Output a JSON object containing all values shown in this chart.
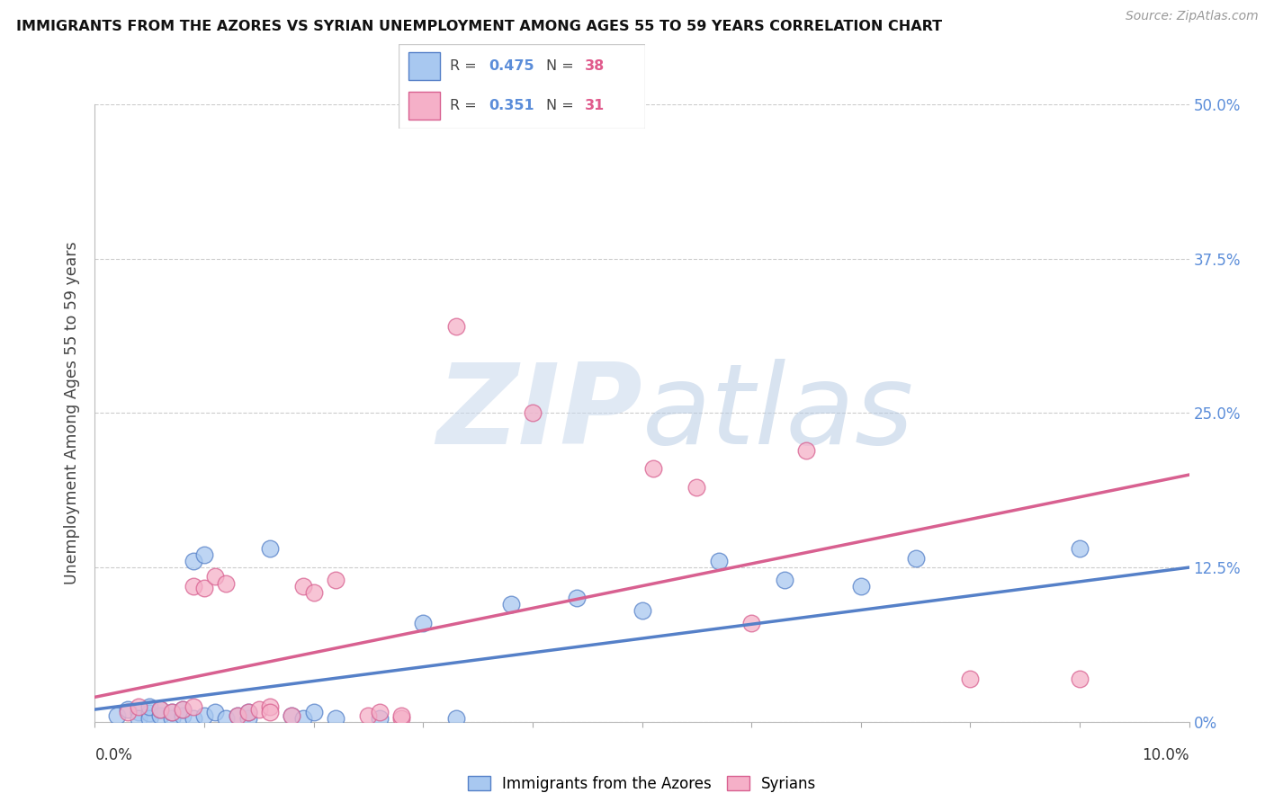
{
  "title": "IMMIGRANTS FROM THE AZORES VS SYRIAN UNEMPLOYMENT AMONG AGES 55 TO 59 YEARS CORRELATION CHART",
  "source": "Source: ZipAtlas.com",
  "ylabel": "Unemployment Among Ages 55 to 59 years",
  "xlim": [
    0.0,
    0.1
  ],
  "ylim": [
    0.0,
    0.5
  ],
  "ytick_values": [
    0.0,
    0.125,
    0.25,
    0.375,
    0.5
  ],
  "ytick_right_labels": [
    "0%",
    "12.5%",
    "25.0%",
    "37.5%",
    "50.0%"
  ],
  "blue_color": "#a8c8f0",
  "blue_edge_color": "#5580c8",
  "pink_color": "#f5b0c8",
  "pink_edge_color": "#d86090",
  "blue_line_color": "#5580c8",
  "pink_line_color": "#d86090",
  "blue_scatter": [
    [
      0.002,
      0.005
    ],
    [
      0.003,
      0.01
    ],
    [
      0.004,
      0.008
    ],
    [
      0.004,
      0.003
    ],
    [
      0.005,
      0.007
    ],
    [
      0.005,
      0.003
    ],
    [
      0.005,
      0.012
    ],
    [
      0.006,
      0.005
    ],
    [
      0.006,
      0.01
    ],
    [
      0.007,
      0.003
    ],
    [
      0.007,
      0.008
    ],
    [
      0.008,
      0.005
    ],
    [
      0.008,
      0.01
    ],
    [
      0.009,
      0.003
    ],
    [
      0.009,
      0.13
    ],
    [
      0.01,
      0.135
    ],
    [
      0.01,
      0.005
    ],
    [
      0.011,
      0.008
    ],
    [
      0.012,
      0.003
    ],
    [
      0.013,
      0.005
    ],
    [
      0.014,
      0.003
    ],
    [
      0.014,
      0.008
    ],
    [
      0.016,
      0.14
    ],
    [
      0.018,
      0.005
    ],
    [
      0.019,
      0.003
    ],
    [
      0.02,
      0.008
    ],
    [
      0.022,
      0.003
    ],
    [
      0.026,
      0.003
    ],
    [
      0.03,
      0.08
    ],
    [
      0.033,
      0.003
    ],
    [
      0.038,
      0.095
    ],
    [
      0.044,
      0.1
    ],
    [
      0.05,
      0.09
    ],
    [
      0.057,
      0.13
    ],
    [
      0.063,
      0.115
    ],
    [
      0.07,
      0.11
    ],
    [
      0.075,
      0.132
    ],
    [
      0.09,
      0.14
    ]
  ],
  "pink_scatter": [
    [
      0.003,
      0.008
    ],
    [
      0.004,
      0.012
    ],
    [
      0.006,
      0.01
    ],
    [
      0.007,
      0.008
    ],
    [
      0.008,
      0.01
    ],
    [
      0.009,
      0.012
    ],
    [
      0.009,
      0.11
    ],
    [
      0.01,
      0.108
    ],
    [
      0.011,
      0.118
    ],
    [
      0.012,
      0.112
    ],
    [
      0.013,
      0.005
    ],
    [
      0.014,
      0.008
    ],
    [
      0.015,
      0.01
    ],
    [
      0.016,
      0.012
    ],
    [
      0.016,
      0.008
    ],
    [
      0.018,
      0.005
    ],
    [
      0.019,
      0.11
    ],
    [
      0.02,
      0.105
    ],
    [
      0.022,
      0.115
    ],
    [
      0.025,
      0.005
    ],
    [
      0.026,
      0.008
    ],
    [
      0.028,
      0.003
    ],
    [
      0.028,
      0.005
    ],
    [
      0.033,
      0.32
    ],
    [
      0.04,
      0.25
    ],
    [
      0.051,
      0.205
    ],
    [
      0.055,
      0.19
    ],
    [
      0.06,
      0.08
    ],
    [
      0.065,
      0.22
    ],
    [
      0.08,
      0.035
    ],
    [
      0.09,
      0.035
    ]
  ],
  "blue_line_x": [
    0.0,
    0.1
  ],
  "blue_line_y": [
    0.01,
    0.125
  ],
  "pink_line_x": [
    0.0,
    0.1
  ],
  "pink_line_y": [
    0.02,
    0.2
  ],
  "legend_r1": "0.475",
  "legend_n1": "38",
  "legend_r2": "0.351",
  "legend_n2": "31",
  "watermark_zip": "ZIP",
  "watermark_atlas": "atlas",
  "background_color": "#ffffff",
  "grid_color": "#cccccc",
  "title_color": "#111111",
  "right_label_color": "#5b8dd9",
  "r_value_color": "#5b8dd9",
  "n_value_color": "#e05a8c"
}
